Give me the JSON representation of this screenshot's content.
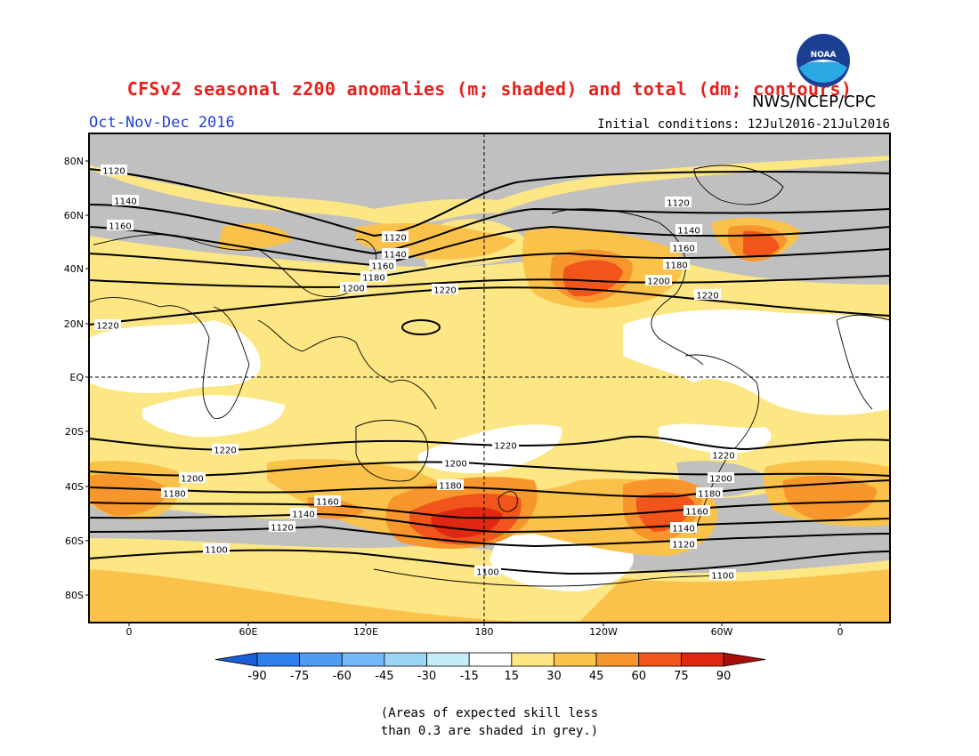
{
  "header": {
    "title": "CFSv2 seasonal z200 anomalies (m; shaded) and total (dm; contours)",
    "agency": "NWS/NCEP/CPC",
    "season": "Oct-Nov-Dec 2016",
    "initial_conditions": "Initial conditions: 12Jul2016-21Jul2016"
  },
  "logo": {
    "text": "NOAA"
  },
  "map": {
    "lat_labels": [
      "80N",
      "60N",
      "40N",
      "20N",
      "EQ",
      "20S",
      "40S",
      "60S",
      "80S"
    ],
    "lon_labels": [
      "0",
      "60E",
      "120E",
      "180",
      "120W",
      "60W",
      "0"
    ],
    "contour_labels": [
      {
        "text": "1120"
      },
      {
        "text": "1140"
      },
      {
        "text": "1160"
      },
      {
        "text": "1120"
      },
      {
        "text": "1140"
      },
      {
        "text": "1160"
      },
      {
        "text": "1180"
      },
      {
        "text": "1200"
      },
      {
        "text": "1220"
      },
      {
        "text": "1120"
      },
      {
        "text": "1140"
      },
      {
        "text": "1160"
      },
      {
        "text": "1180"
      },
      {
        "text": "1200"
      },
      {
        "text": "1220"
      },
      {
        "text": "1220"
      },
      {
        "text": "1220"
      },
      {
        "text": "1220"
      },
      {
        "text": "1220"
      },
      {
        "text": "1200"
      },
      {
        "text": "1200"
      },
      {
        "text": "1200"
      },
      {
        "text": "1180"
      },
      {
        "text": "1180"
      },
      {
        "text": "1180"
      },
      {
        "text": "1160"
      },
      {
        "text": "1160"
      },
      {
        "text": "1140"
      },
      {
        "text": "1140"
      },
      {
        "text": "1120"
      },
      {
        "text": "1120"
      },
      {
        "text": "1100"
      },
      {
        "text": "1100"
      },
      {
        "text": "1100"
      }
    ]
  },
  "colorbar": {
    "labels": [
      "-90",
      "-75",
      "-60",
      "-45",
      "-30",
      "-15",
      "15",
      "30",
      "45",
      "60",
      "75",
      "90"
    ],
    "colors": [
      "#1a5fd6",
      "#2f80ea",
      "#4f9cf0",
      "#73b8f4",
      "#9cd6f6",
      "#c3eef7",
      "#ffffff",
      "#fde684",
      "#fbc24b",
      "#f8962e",
      "#f2551c",
      "#e02712",
      "#a80f0a"
    ]
  },
  "footnote": "(Areas of expected skill less\nthan 0.3 are shaded in grey.)",
  "colors": {
    "title": "#e8201a",
    "season": "#1f3fd6",
    "grey_skill": "#c0c0c0",
    "pale_yellow": "#fde684",
    "yellow_orange": "#fbc24b",
    "orange": "#f8962e",
    "red_orange": "#f2551c",
    "red": "#e02712"
  }
}
